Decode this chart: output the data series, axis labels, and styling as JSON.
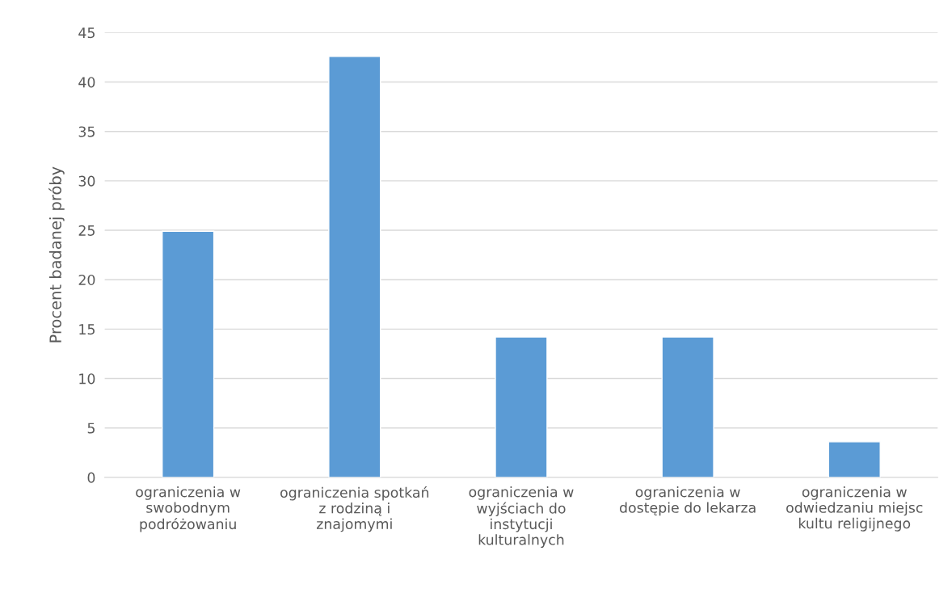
{
  "chart_data": {
    "type": "bar",
    "ylabel": "Procent badanej próby",
    "categories": [
      "ograniczenia w\nswobodnym\npodróżowaniu",
      "ograniczenia spotkań\nz rodziną i\nznajomymi",
      "ograniczenia w\nwyjściach do\ninstytucji\nkulturalnych",
      "ograniczenia w\ndostępie do lekarza",
      "ograniczenia w\nodwiedzaniu miejsc\nkultu religijnego"
    ],
    "values": [
      24.9,
      42.6,
      14.2,
      14.2,
      3.6
    ],
    "color": "#5b9bd5",
    "ylim": [
      0,
      45
    ],
    "yticks": [
      0,
      5,
      10,
      15,
      20,
      25,
      30,
      35,
      40,
      45
    ],
    "grid": "y"
  }
}
